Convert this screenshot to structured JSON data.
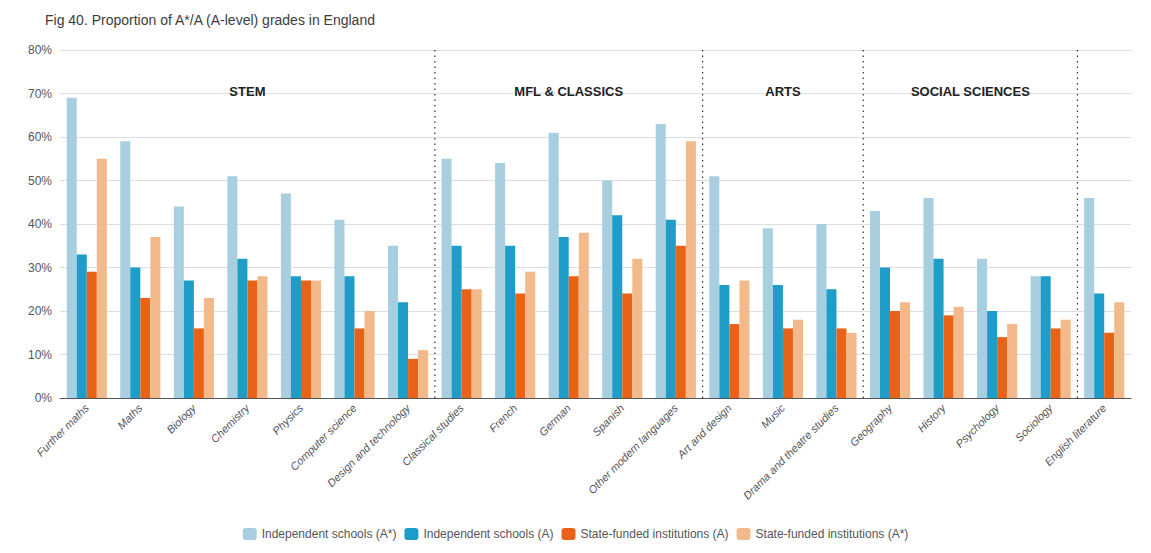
{
  "chart_data": {
    "type": "bar",
    "title": "Fig 40. Proportion of A*/A (A-level) grades in England",
    "categories": [
      "Further maths",
      "Maths",
      "Biology",
      "Chemistry",
      "Physics",
      "Computer science",
      "Design and technology",
      "Classical studies",
      "French",
      "German",
      "Spanish",
      "Other modern languages",
      "Art and design",
      "Music",
      "Drama and theatre studies",
      "Geography",
      "History",
      "Psychology",
      "Sociology",
      "English literature"
    ],
    "series": [
      {
        "name": "Independent schools (A*)",
        "color": "#A8CFDF",
        "values": [
          69,
          59,
          44,
          51,
          47,
          41,
          35,
          55,
          54,
          61,
          50,
          63,
          51,
          39,
          40,
          43,
          46,
          32,
          28,
          46
        ]
      },
      {
        "name": "Independent schools (A)",
        "color": "#1E9DC8",
        "values": [
          33,
          30,
          27,
          32,
          28,
          28,
          22,
          35,
          35,
          37,
          42,
          41,
          26,
          26,
          25,
          30,
          32,
          20,
          28,
          24
        ]
      },
      {
        "name": "State-funded institutions (A)",
        "color": "#E86318",
        "values": [
          29,
          23,
          16,
          27,
          27,
          16,
          9,
          25,
          24,
          28,
          24,
          35,
          17,
          16,
          16,
          20,
          19,
          14,
          16,
          15
        ]
      },
      {
        "name": "State-funded institutions (A*)",
        "color": "#F2B98A",
        "values": [
          55,
          37,
          23,
          28,
          27,
          20,
          11,
          25,
          29,
          38,
          32,
          59,
          27,
          18,
          15,
          22,
          21,
          17,
          18,
          22
        ]
      }
    ],
    "annotations": [
      {
        "text": "STEM",
        "first": "Further maths",
        "last": "Design and technology"
      },
      {
        "text": "MFL & CLASSICS",
        "first": "Classical studies",
        "last": "Other modern languages"
      },
      {
        "text": "ARTS",
        "first": "Art and design",
        "last": "Drama and theatre studies"
      },
      {
        "text": "SOCIAL SCIENCES",
        "first": "Geography",
        "last": "Sociology"
      }
    ],
    "ylim": [
      0,
      80
    ],
    "yticks": [
      {
        "value": 0,
        "label": "0%"
      },
      {
        "value": 10,
        "label": "10%"
      },
      {
        "value": 20,
        "label": "20%"
      },
      {
        "value": 30,
        "label": "30%"
      },
      {
        "value": 40,
        "label": "40%"
      },
      {
        "value": 50,
        "label": "50%"
      },
      {
        "value": 60,
        "label": "60%"
      },
      {
        "value": 70,
        "label": "70%"
      },
      {
        "value": 80,
        "label": "80%"
      }
    ],
    "grid": true,
    "legend": "bottom"
  }
}
